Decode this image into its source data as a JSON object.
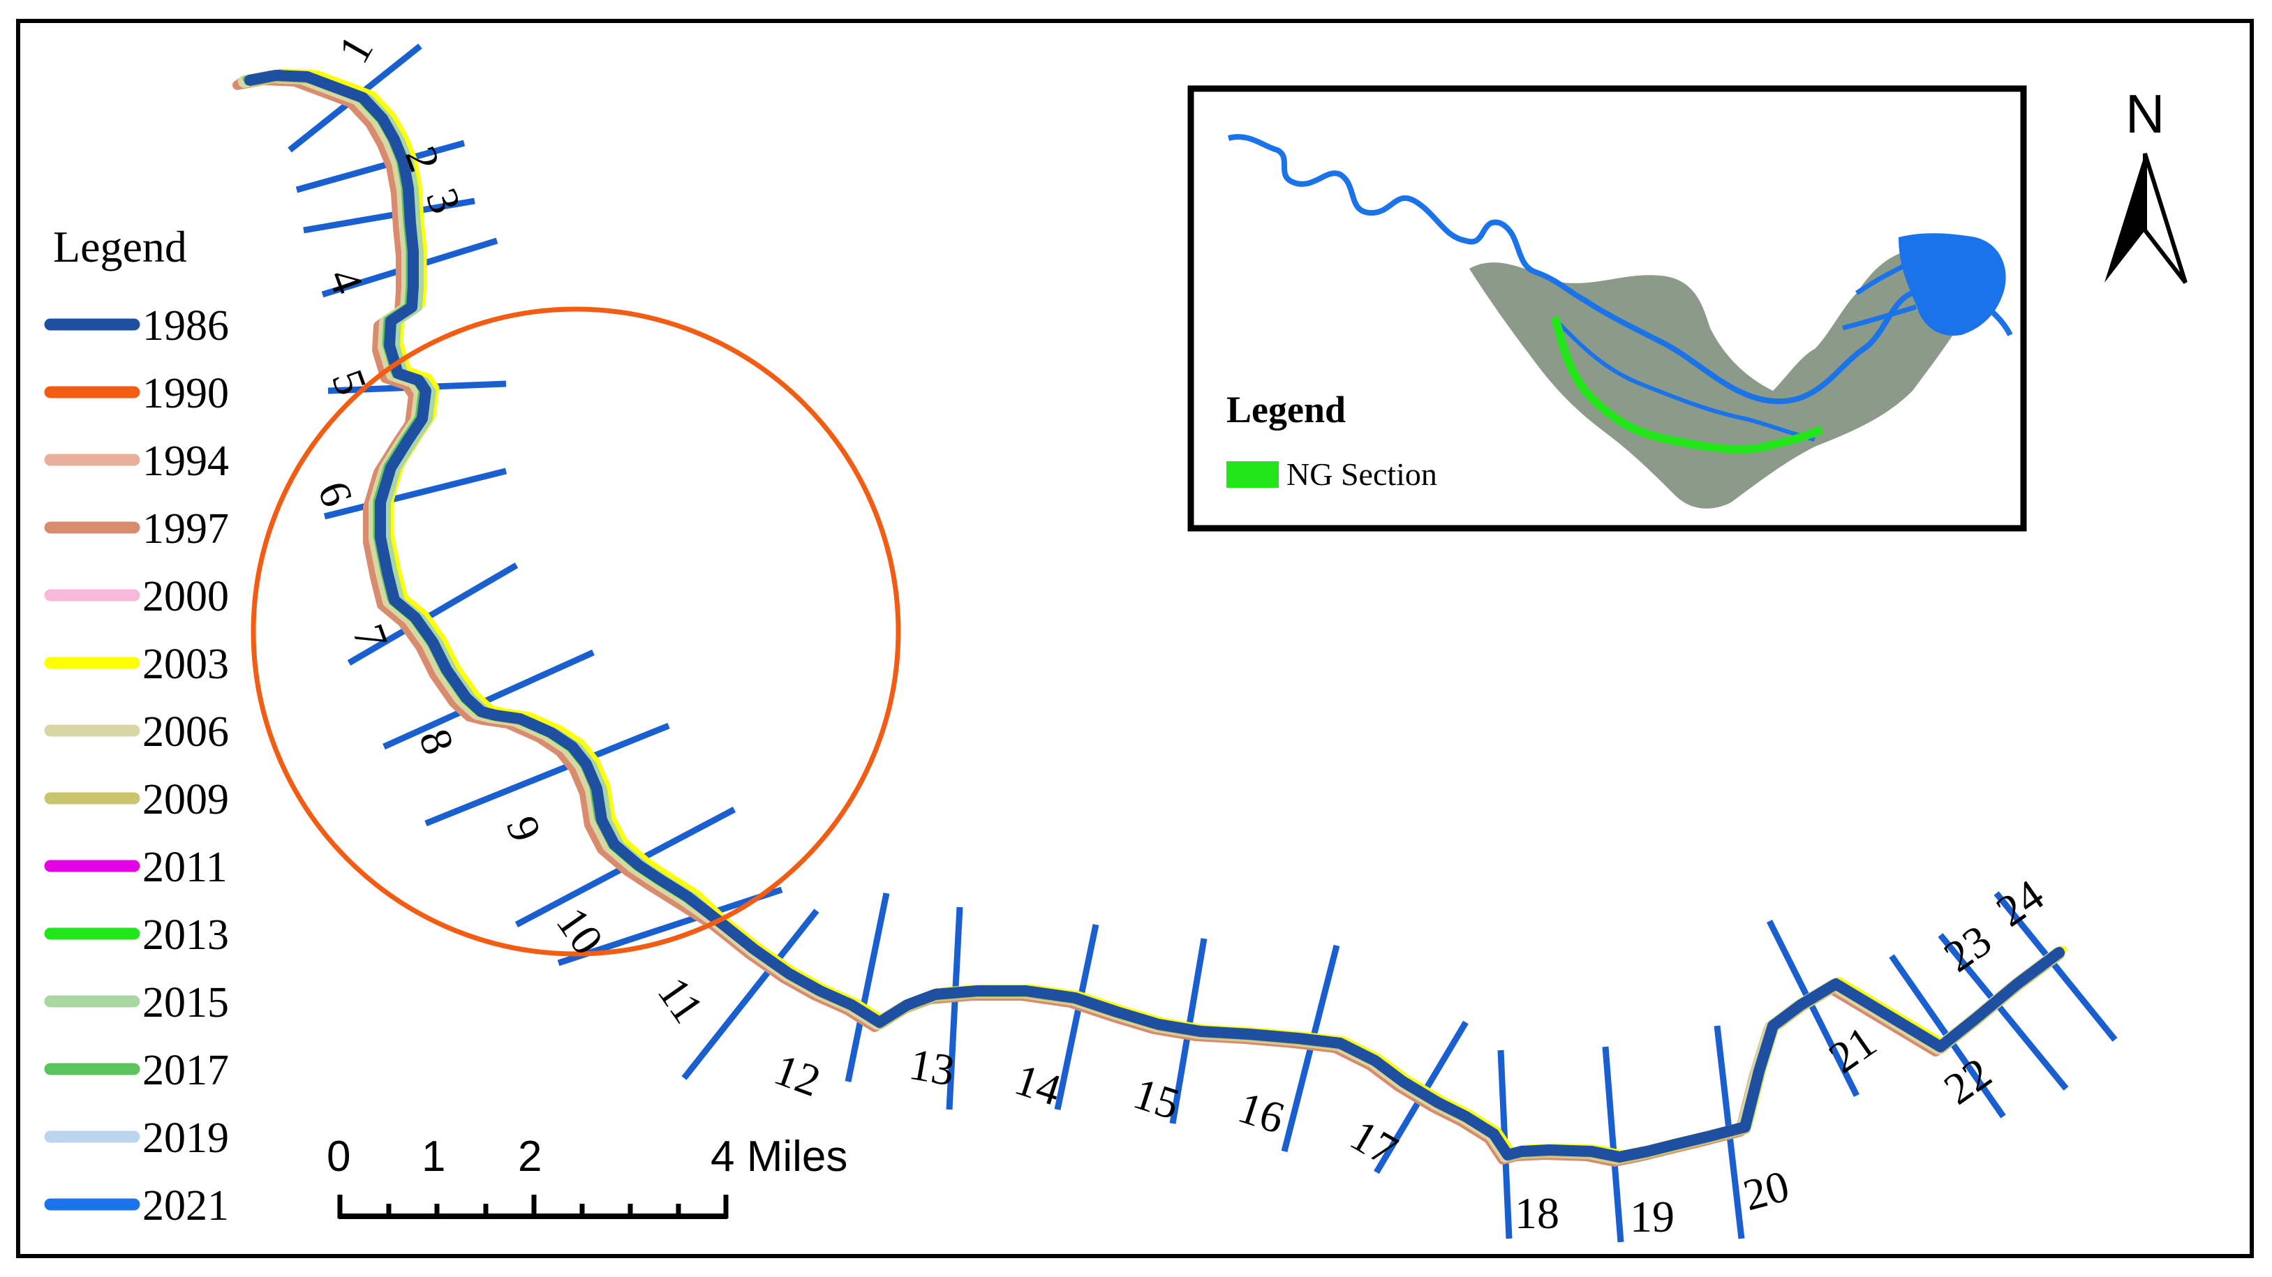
{
  "legend": {
    "title": "Legend",
    "items": [
      {
        "label": "1986",
        "color": "#1f4fa0"
      },
      {
        "label": "1990",
        "color": "#f25c13"
      },
      {
        "label": "1994",
        "color": "#e8b09a"
      },
      {
        "label": "1997",
        "color": "#d98c6d"
      },
      {
        "label": "2000",
        "color": "#f8b8dc"
      },
      {
        "label": "2003",
        "color": "#ffff00"
      },
      {
        "label": "2006",
        "color": "#d8d6a4"
      },
      {
        "label": "2009",
        "color": "#c8c56c"
      },
      {
        "label": "2011",
        "color": "#e600e6"
      },
      {
        "label": "2013",
        "color": "#22e61a"
      },
      {
        "label": "2015",
        "color": "#a9d6a3"
      },
      {
        "label": "2017",
        "color": "#5cc45c"
      },
      {
        "label": "2019",
        "color": "#bcd4ee"
      },
      {
        "label": "2021",
        "color": "#1a73e8"
      }
    ]
  },
  "inset": {
    "legend_title": "Legend",
    "item_label": "NG Section",
    "item_color": "#22e61a",
    "river_color": "#1a73e8",
    "land_color": "#8c9a8a"
  },
  "scale_bar": {
    "labels": [
      "0",
      "1",
      "2",
      "4 Miles"
    ]
  },
  "north_arrow": {
    "label": "N"
  },
  "sections": [
    "1",
    "2",
    "3",
    "4",
    "5",
    "6",
    "7",
    "8",
    "9",
    "10",
    "11",
    "12",
    "13",
    "14",
    "15",
    "16",
    "17",
    "18",
    "19",
    "20",
    "21",
    "22",
    "23",
    "24"
  ],
  "highlight_circle_color": "#f25c13",
  "transect_color": "#1a5fd0"
}
